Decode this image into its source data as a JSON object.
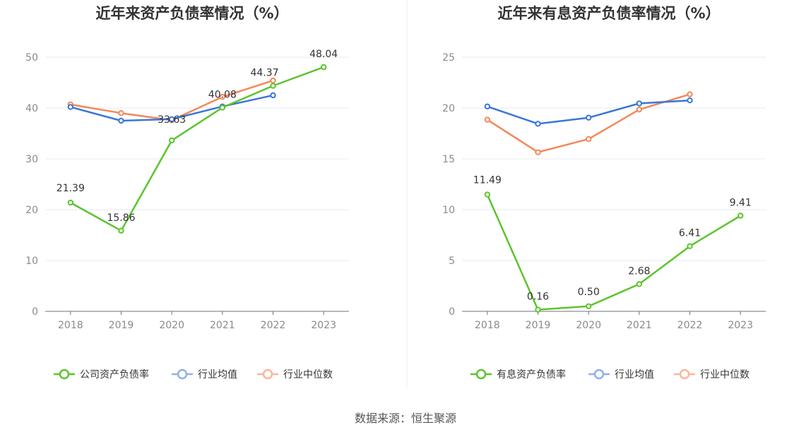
{
  "source": "数据来源：恒生聚源",
  "chart_data": [
    {
      "type": "line",
      "title": "近年来资产负债率情况（%）",
      "categories": [
        "2018",
        "2019",
        "2020",
        "2021",
        "2022",
        "2023"
      ],
      "ylim": [
        0,
        50
      ],
      "yticks": [
        0,
        10,
        20,
        30,
        40,
        50
      ],
      "legend_position": "bottom",
      "grid": true,
      "series": [
        {
          "name": "公司资产负债率",
          "color": "#5cc42e",
          "values": [
            21.39,
            15.86,
            33.63,
            40.08,
            44.37,
            48.04
          ],
          "labels": [
            "21.39",
            "15.86",
            "33.63",
            "40.08",
            "44.37",
            "48.04"
          ]
        },
        {
          "name": "行业均值",
          "color": "#3a76d8",
          "values": [
            40.2,
            37.5,
            37.8,
            40.3,
            42.5,
            null
          ]
        },
        {
          "name": "行业中位数",
          "color": "#f4875a",
          "values": [
            40.7,
            39.0,
            37.6,
            42.2,
            45.4,
            null
          ]
        }
      ]
    },
    {
      "type": "line",
      "title": "近年来有息资产负债率情况（%）",
      "categories": [
        "2018",
        "2019",
        "2020",
        "2021",
        "2022",
        "2023"
      ],
      "ylim": [
        0,
        25
      ],
      "yticks": [
        0,
        5,
        10,
        15,
        20,
        25
      ],
      "legend_position": "bottom",
      "grid": true,
      "series": [
        {
          "name": "有息资产负债率",
          "color": "#5cc42e",
          "values": [
            11.49,
            0.16,
            0.5,
            2.68,
            6.41,
            9.41
          ],
          "labels": [
            "11.49",
            "0.16",
            "0.50",
            "2.68",
            "6.41",
            "9.41"
          ]
        },
        {
          "name": "行业均值",
          "color": "#3a76d8",
          "values": [
            20.15,
            18.45,
            19.05,
            20.45,
            20.75,
            null
          ]
        },
        {
          "name": "行业中位数",
          "color": "#f4875a",
          "values": [
            18.85,
            15.65,
            16.95,
            19.85,
            21.35,
            null
          ]
        }
      ]
    }
  ]
}
